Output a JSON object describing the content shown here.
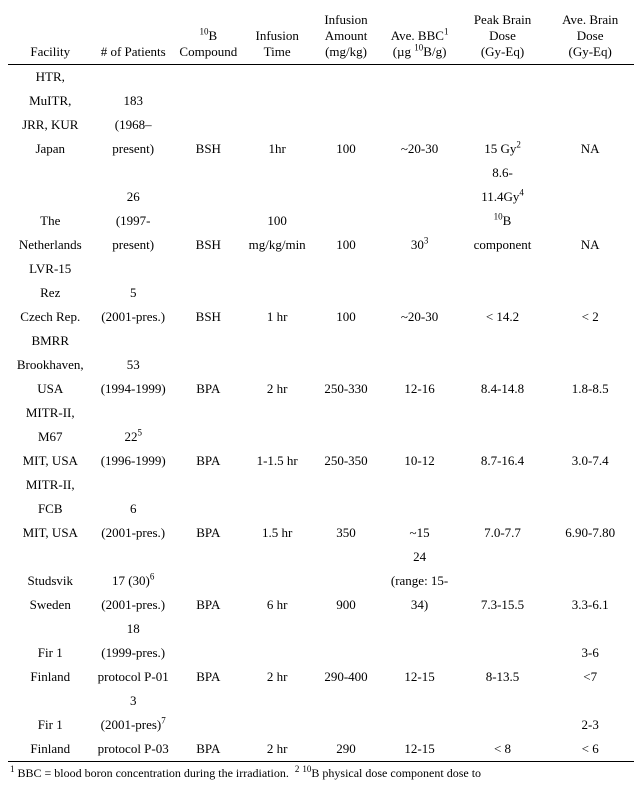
{
  "columns": [
    {
      "line1": "",
      "line2": "",
      "line3": "Facility"
    },
    {
      "line1": "",
      "line2": "",
      "line3": "# of Patients"
    },
    {
      "line1": "",
      "line2_html": "<sup>10</sup>B",
      "line3": "Compound"
    },
    {
      "line1": "",
      "line2": "Infusion",
      "line3": "Time"
    },
    {
      "line1": "Infusion",
      "line2": "Amount",
      "line3": "(mg/kg)"
    },
    {
      "line1": "",
      "line2_html": "Ave. BBC<sup>1</sup>",
      "line3_html": "(µg <sup>10</sup>B/g)"
    },
    {
      "line1": "Peak Brain",
      "line2": "Dose",
      "line3": "(Gy-Eq)"
    },
    {
      "line1": "Ave. Brain",
      "line2": "Dose",
      "line3": "(Gy-Eq)"
    }
  ],
  "col_widths": [
    "13.5%",
    "13%",
    "11%",
    "11%",
    "11%",
    "12.5%",
    "14%",
    "14%"
  ],
  "rows": [
    [
      "HTR,",
      "",
      "",
      "",
      "",
      "",
      "",
      ""
    ],
    [
      "MuITR,",
      "183",
      "",
      "",
      "",
      "",
      "",
      ""
    ],
    [
      "JRR, KUR",
      "(1968–",
      "",
      "",
      "",
      "",
      "",
      ""
    ],
    [
      "Japan",
      "present)",
      "BSH",
      "1hr",
      "100",
      "~20-30",
      {
        "html": "15 Gy<sup>2</sup>"
      },
      "NA"
    ],
    [
      "",
      "",
      "",
      "",
      "",
      "",
      "8.6-",
      ""
    ],
    [
      "",
      "26",
      "",
      "",
      "",
      "",
      {
        "html": "11.4Gy<sup>4</sup>"
      },
      ""
    ],
    [
      "The",
      "(1997-",
      "",
      "100",
      "",
      "",
      {
        "html": "<sup>10</sup>B"
      },
      ""
    ],
    [
      "Netherlands",
      "present)",
      "BSH",
      "mg/kg/min",
      "100",
      {
        "html": "30<sup>3</sup>"
      },
      "component",
      "NA"
    ],
    [
      "LVR-15",
      "",
      "",
      "",
      "",
      "",
      "",
      ""
    ],
    [
      "Rez",
      "5",
      "",
      "",
      "",
      "",
      "",
      ""
    ],
    [
      "Czech Rep.",
      "(2001-pres.)",
      "BSH",
      "1 hr",
      "100",
      "~20-30",
      "< 14.2",
      "< 2"
    ],
    [
      "BMRR",
      "",
      "",
      "",
      "",
      "",
      "",
      ""
    ],
    [
      "Brookhaven,",
      "53",
      "",
      "",
      "",
      "",
      "",
      ""
    ],
    [
      "USA",
      "(1994-1999)",
      "BPA",
      "2 hr",
      "250-330",
      "12-16",
      "8.4-14.8",
      "1.8-8.5"
    ],
    [
      "MITR-II,",
      "",
      "",
      "",
      "",
      "",
      "",
      ""
    ],
    [
      "M67",
      {
        "html": "22<sup>5</sup>"
      },
      "",
      "",
      "",
      "",
      "",
      ""
    ],
    [
      "MIT, USA",
      "(1996-1999)",
      "BPA",
      "1-1.5 hr",
      "250-350",
      "10-12",
      "8.7-16.4",
      "3.0-7.4"
    ],
    [
      "MITR-II,",
      "",
      "",
      "",
      "",
      "",
      "",
      ""
    ],
    [
      "FCB",
      "6",
      "",
      "",
      "",
      "",
      "",
      ""
    ],
    [
      "MIT, USA",
      "(2001-pres.)",
      "BPA",
      "1.5 hr",
      "350",
      "~15",
      "7.0-7.7",
      "6.90-7.80"
    ],
    [
      "",
      "",
      "",
      "",
      "",
      "24",
      "",
      ""
    ],
    [
      "Studsvik",
      {
        "html": "17 (30)<sup>6</sup>"
      },
      "",
      "",
      "",
      "(range: 15-",
      "",
      ""
    ],
    [
      "Sweden",
      "(2001-pres.)",
      "BPA",
      "6 hr",
      "900",
      "34)",
      "7.3-15.5",
      "3.3-6.1"
    ],
    [
      "",
      "18",
      "",
      "",
      "",
      "",
      "",
      ""
    ],
    [
      "Fir 1",
      "(1999-pres.)",
      "",
      "",
      "",
      "",
      "",
      "3-6"
    ],
    [
      "Finland",
      "protocol P-01",
      "BPA",
      "2 hr",
      "290-400",
      "12-15",
      "8-13.5",
      "<7"
    ],
    [
      "",
      "3",
      "",
      "",
      "",
      "",
      "",
      ""
    ],
    [
      "Fir 1",
      {
        "html": "(2001-pres)<sup>7</sup>"
      },
      "",
      "",
      "",
      "",
      "",
      "2-3"
    ],
    [
      "Finland",
      "protocol P-03",
      "BPA",
      "2 hr",
      "290",
      "12-15",
      "< 8",
      "< 6"
    ]
  ],
  "footnote_html": "<sup>1</sup> BBC = blood boron concentration during the irradiation.&nbsp;&nbsp;<sup>2</sup> <sup>10</sup>B physical dose component dose to"
}
